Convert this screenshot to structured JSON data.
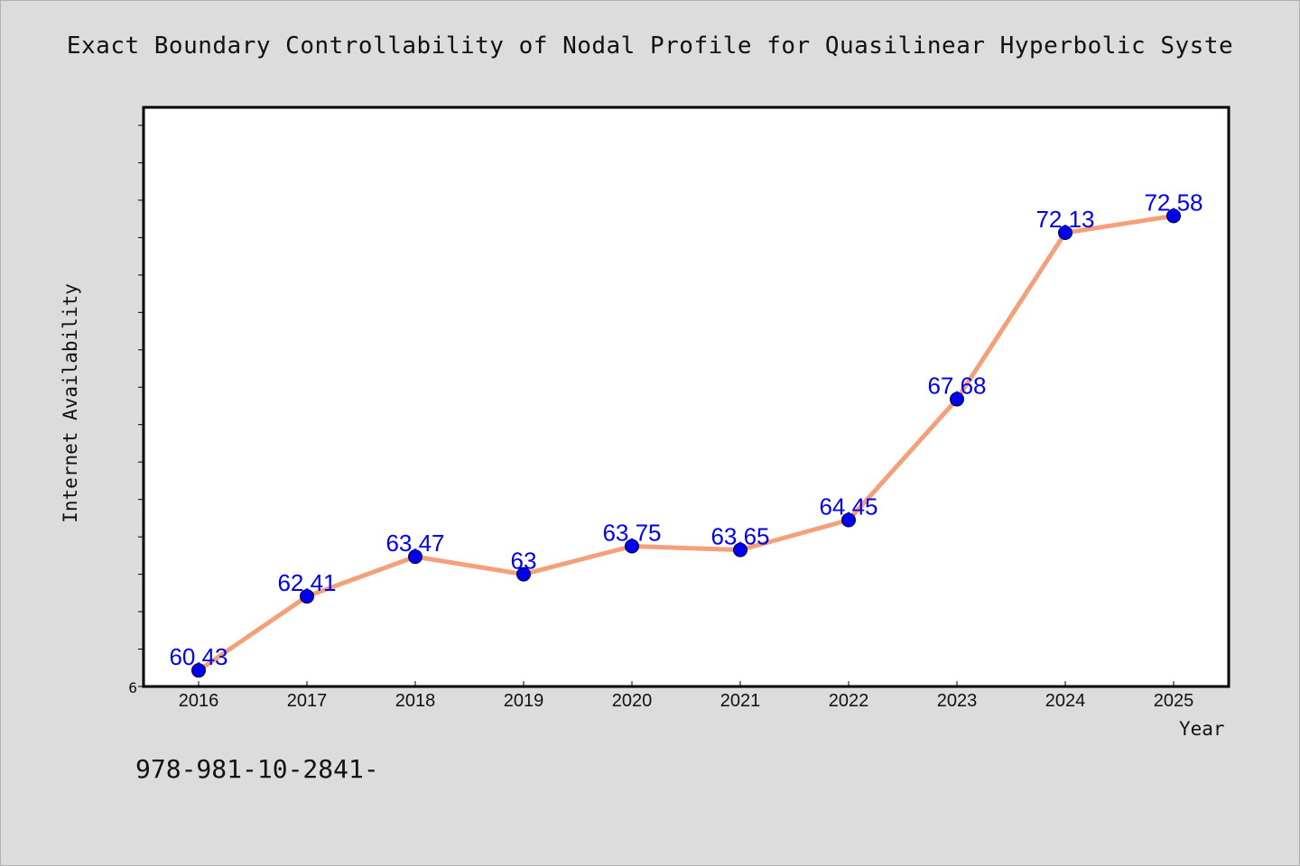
{
  "colors": {
    "background": "#dcdcdc",
    "plot_background": "#ffffff",
    "line": "#f4a07a",
    "marker": "#0000ee",
    "data_label": "#0000ee",
    "text": "#111111"
  },
  "footer": {
    "isbn_text": "978-981-10-2841-"
  },
  "chart_data": {
    "type": "line",
    "title": "Exact Boundary Controllability of Nodal Profile for Quasilinear Hyperbolic Syste",
    "xlabel": "Year",
    "ylabel": "Internet Availability",
    "categories": [
      "2016",
      "2017",
      "2018",
      "2019",
      "2020",
      "2021",
      "2022",
      "2023",
      "2024",
      "2025"
    ],
    "series": [
      {
        "values": [
          60.43,
          62.41,
          63.47,
          63,
          63.75,
          63.65,
          64.45,
          67.68,
          72.13,
          72.58
        ],
        "labels": [
          "60.43",
          "62.41",
          "63.47",
          "63",
          "63.75",
          "63.65",
          "64.45",
          "67.68",
          "72.13",
          "72.58"
        ]
      }
    ],
    "y_tick_labels": [
      "6"
    ],
    "ylim": [
      60,
      75
    ],
    "grid": false,
    "legend": "none",
    "marker": "circle"
  }
}
